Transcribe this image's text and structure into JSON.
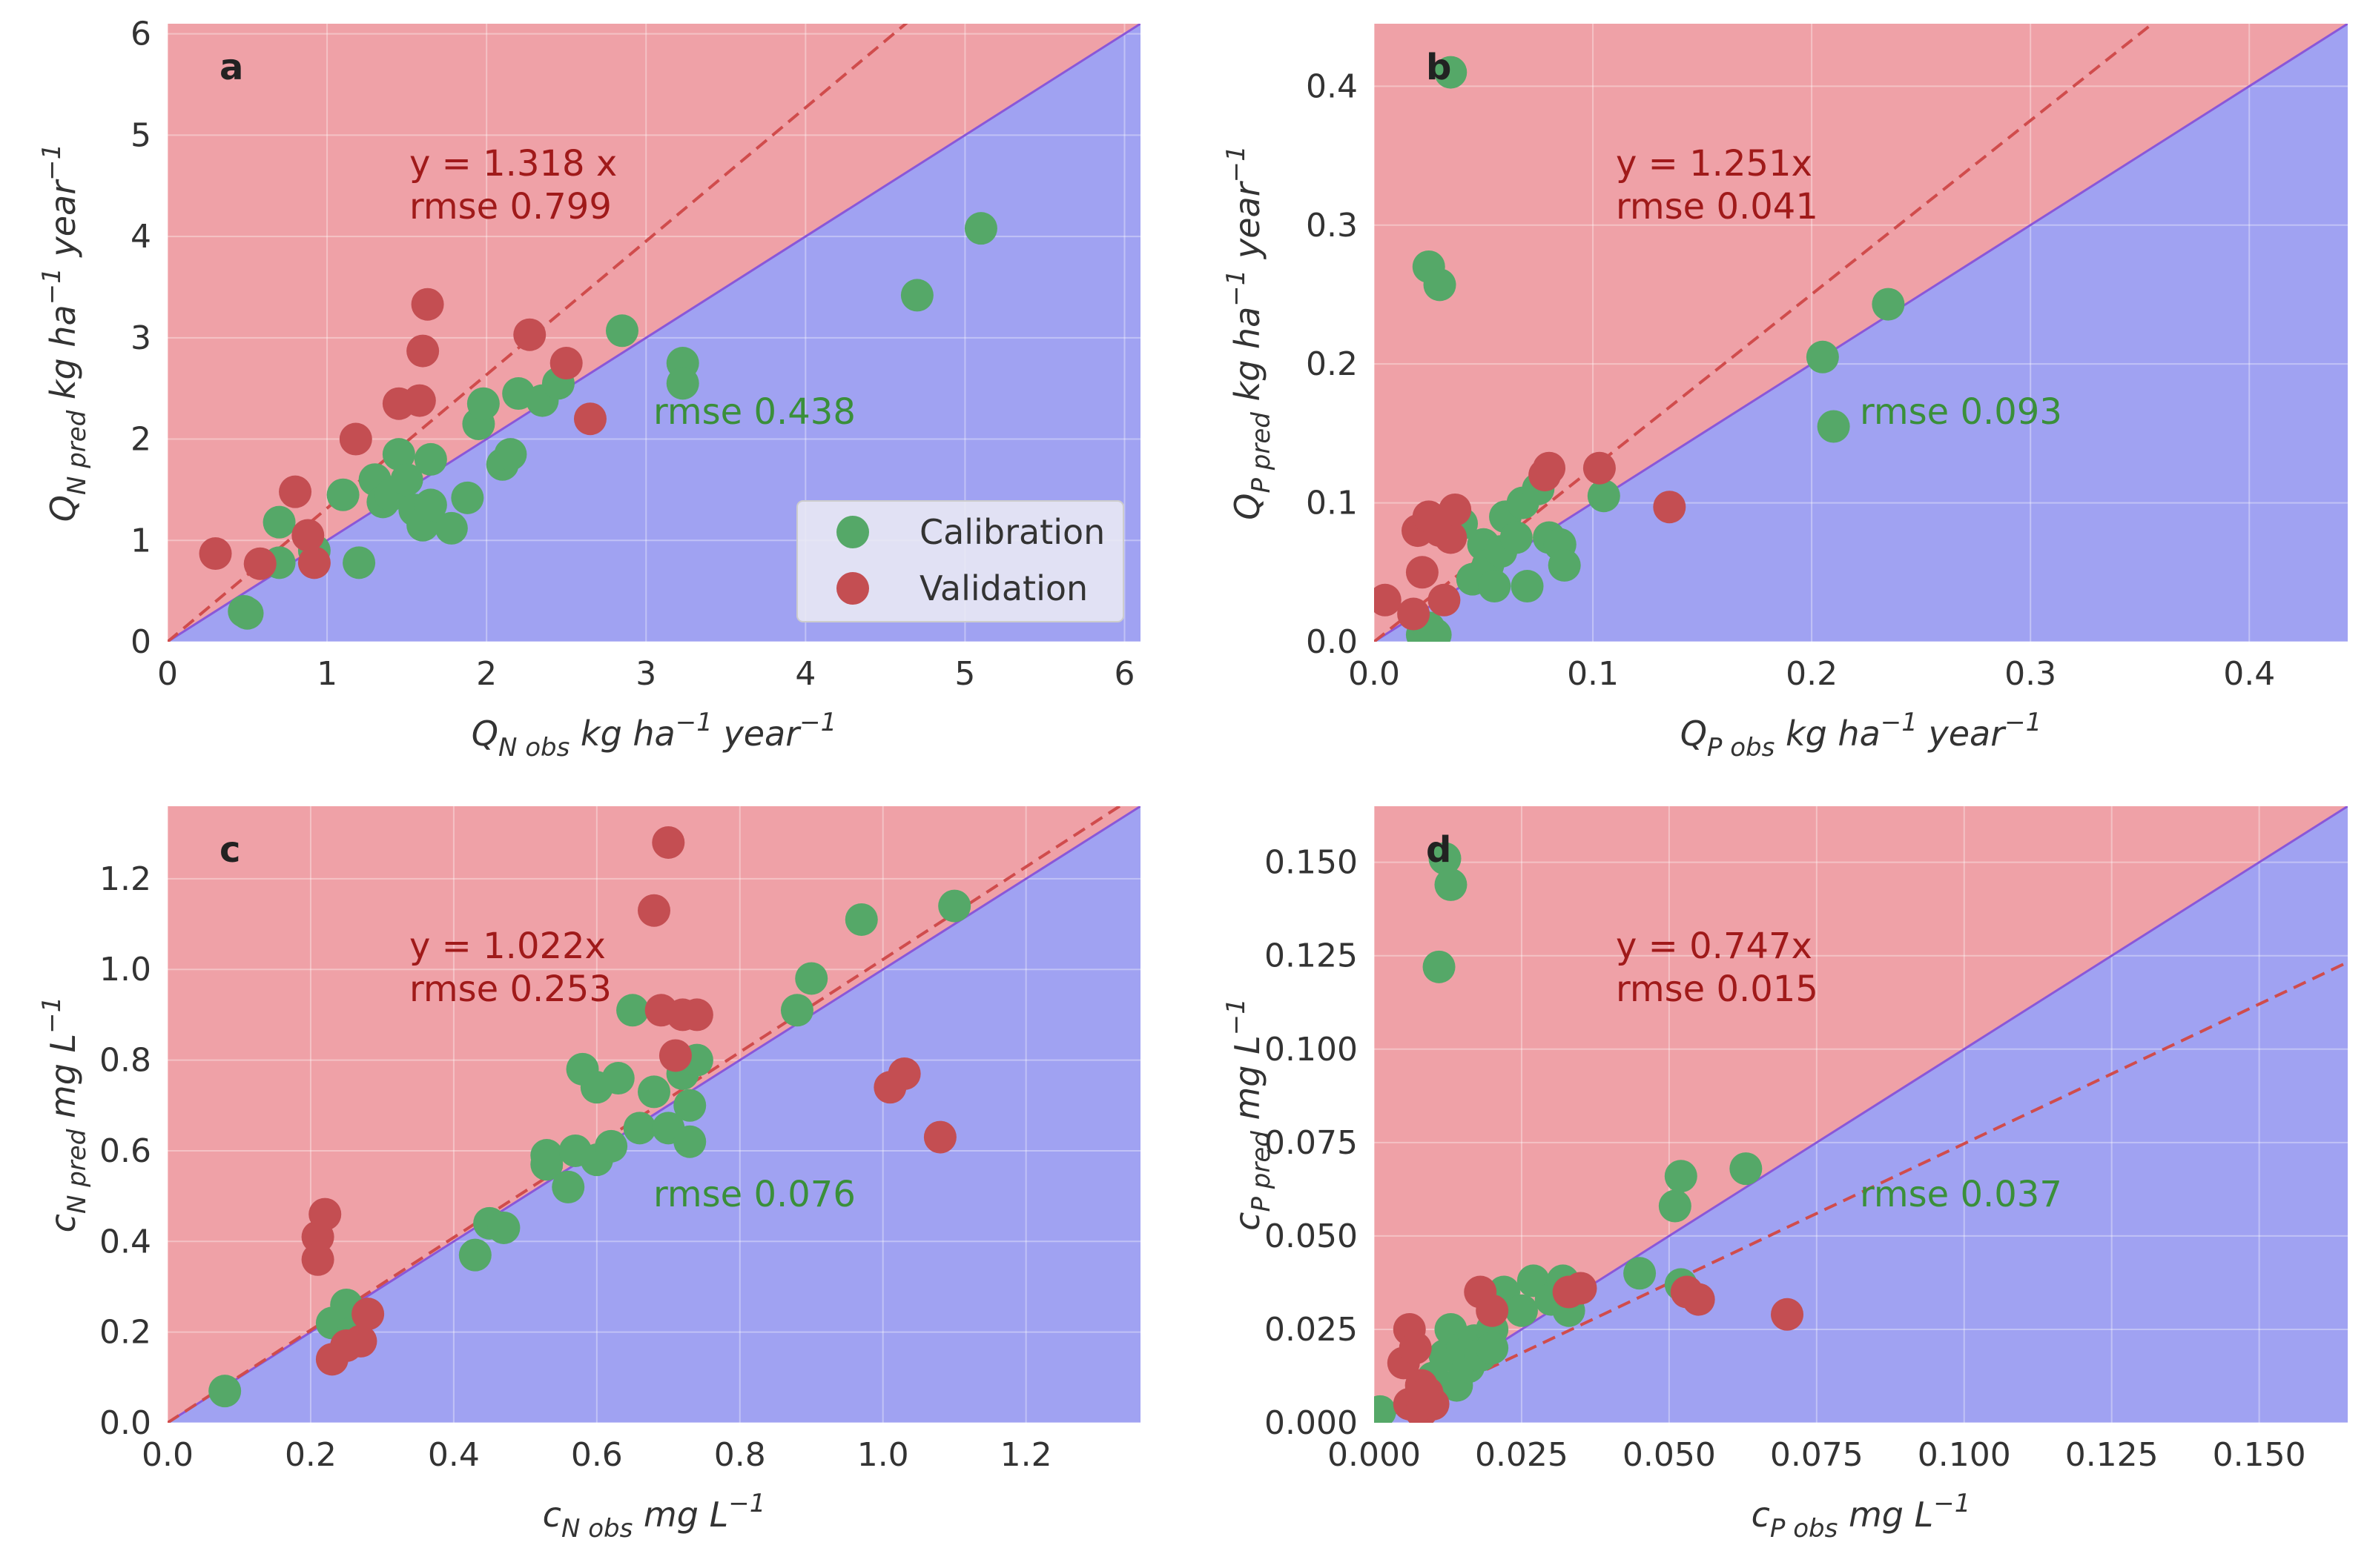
{
  "figure": {
    "colors": {
      "over_region": "#efa1a7",
      "under_region": "#a0a2f2",
      "grid": "#ffffff",
      "one_to_one": "#8a57d8",
      "fit_line": "#d04c4c",
      "calibration": "#55a868",
      "validation": "#c44e52",
      "annot_red": "#a01a1a",
      "annot_green": "#3a8f3a"
    },
    "legend": {
      "calibration_label": "Calibration",
      "validation_label": "Validation"
    }
  },
  "chart_data": [
    {
      "type": "scatter",
      "panel": "a",
      "xlabel": {
        "base": "Q",
        "sub": "N obs",
        "units": " kg ha",
        "sup": "−1",
        "units2": " year",
        "sup2": "−1"
      },
      "ylabel": {
        "base": "Q",
        "sub": "N pred",
        "units": " kg ha",
        "sup": "−1",
        "units2": " year",
        "sup2": "−1"
      },
      "xlim": [
        0,
        6.1
      ],
      "ylim": [
        0,
        6.1
      ],
      "xticks": [
        0,
        1,
        2,
        3,
        4,
        5,
        6
      ],
      "xtick_labels": [
        "0",
        "1",
        "2",
        "3",
        "4",
        "5",
        "6"
      ],
      "yticks": [
        0,
        1,
        2,
        3,
        4,
        5,
        6
      ],
      "ytick_labels": [
        "0",
        "1",
        "2",
        "3",
        "4",
        "5",
        "6"
      ],
      "fit_slope": 1.318,
      "fit_text": "y = 1.318 x",
      "rmse_validation_text": "rmse 0.799",
      "rmse_calibration_text": "rmse 0.438",
      "has_legend": true,
      "series": [
        {
          "name": "Calibration",
          "points": [
            [
              0.5,
              0.28
            ],
            [
              0.48,
              0.3
            ],
            [
              0.7,
              1.18
            ],
            [
              0.7,
              0.78
            ],
            [
              0.92,
              0.9
            ],
            [
              1.1,
              1.45
            ],
            [
              1.2,
              0.78
            ],
            [
              1.3,
              1.6
            ],
            [
              1.35,
              1.38
            ],
            [
              1.4,
              1.45
            ],
            [
              1.45,
              1.85
            ],
            [
              1.5,
              1.6
            ],
            [
              1.55,
              1.3
            ],
            [
              1.6,
              1.15
            ],
            [
              1.65,
              1.35
            ],
            [
              1.65,
              1.8
            ],
            [
              1.78,
              1.12
            ],
            [
              1.88,
              1.42
            ],
            [
              1.95,
              2.15
            ],
            [
              1.98,
              2.35
            ],
            [
              2.1,
              1.75
            ],
            [
              2.15,
              1.85
            ],
            [
              2.2,
              2.45
            ],
            [
              2.35,
              2.38
            ],
            [
              2.45,
              2.55
            ],
            [
              2.85,
              3.07
            ],
            [
              3.23,
              2.75
            ],
            [
              3.23,
              2.55
            ],
            [
              4.7,
              3.42
            ],
            [
              5.1,
              4.08
            ]
          ]
        },
        {
          "name": "Validation",
          "points": [
            [
              0.3,
              0.87
            ],
            [
              0.58,
              0.77
            ],
            [
              0.8,
              1.48
            ],
            [
              0.88,
              1.05
            ],
            [
              0.92,
              0.78
            ],
            [
              1.18,
              2.0
            ],
            [
              1.45,
              2.35
            ],
            [
              1.58,
              2.38
            ],
            [
              1.6,
              2.87
            ],
            [
              1.63,
              3.33
            ],
            [
              2.27,
              3.03
            ],
            [
              2.5,
              2.75
            ],
            [
              2.65,
              2.2
            ]
          ]
        }
      ]
    },
    {
      "type": "scatter",
      "panel": "b",
      "xlabel": {
        "base": "Q",
        "sub": "P obs",
        "units": " kg ha",
        "sup": "−1",
        "units2": " year",
        "sup2": "−1"
      },
      "ylabel": {
        "base": "Q",
        "sub": "P pred",
        "units": " kg ha",
        "sup": "−1",
        "units2": " year",
        "sup2": "−1"
      },
      "xlim": [
        0,
        0.445
      ],
      "ylim": [
        0,
        0.445
      ],
      "xticks": [
        0,
        0.1,
        0.2,
        0.3,
        0.4
      ],
      "xtick_labels": [
        "0.0",
        "0.1",
        "0.2",
        "0.3",
        "0.4"
      ],
      "yticks": [
        0,
        0.1,
        0.2,
        0.3,
        0.4
      ],
      "ytick_labels": [
        "0.0",
        "0.1",
        "0.2",
        "0.3",
        "0.4"
      ],
      "fit_slope": 1.251,
      "fit_text": "y = 1.251x",
      "rmse_validation_text": "rmse 0.041",
      "rmse_calibration_text": "rmse 0.093",
      "has_legend": false,
      "series": [
        {
          "name": "Calibration",
          "points": [
            [
              0.035,
              0.41
            ],
            [
              0.025,
              0.27
            ],
            [
              0.03,
              0.257
            ],
            [
              0.022,
              0.005
            ],
            [
              0.025,
              0.01
            ],
            [
              0.028,
              0.005
            ],
            [
              0.04,
              0.085
            ],
            [
              0.045,
              0.045
            ],
            [
              0.05,
              0.07
            ],
            [
              0.052,
              0.055
            ],
            [
              0.055,
              0.04
            ],
            [
              0.058,
              0.065
            ],
            [
              0.06,
              0.09
            ],
            [
              0.065,
              0.075
            ],
            [
              0.068,
              0.1
            ],
            [
              0.07,
              0.04
            ],
            [
              0.075,
              0.11
            ],
            [
              0.08,
              0.075
            ],
            [
              0.085,
              0.07
            ],
            [
              0.087,
              0.055
            ],
            [
              0.105,
              0.105
            ],
            [
              0.205,
              0.205
            ],
            [
              0.21,
              0.155
            ],
            [
              0.235,
              0.243
            ]
          ]
        },
        {
          "name": "Validation",
          "points": [
            [
              0.005,
              0.03
            ],
            [
              0.018,
              0.02
            ],
            [
              0.02,
              0.08
            ],
            [
              0.022,
              0.05
            ],
            [
              0.025,
              0.09
            ],
            [
              0.03,
              0.08
            ],
            [
              0.032,
              0.03
            ],
            [
              0.035,
              0.075
            ],
            [
              0.037,
              0.095
            ],
            [
              0.078,
              0.12
            ],
            [
              0.08,
              0.125
            ],
            [
              0.103,
              0.125
            ],
            [
              0.135,
              0.097
            ]
          ]
        }
      ]
    },
    {
      "type": "scatter",
      "panel": "c",
      "xlabel": {
        "base": "c",
        "sub": "N obs",
        "units": " mg L",
        "sup": "−1",
        "units2": "",
        "sup2": ""
      },
      "ylabel": {
        "base": "c",
        "sub": "N pred",
        "units": " mg L",
        "sup": "−1",
        "units2": "",
        "sup2": ""
      },
      "xlim": [
        0,
        1.36
      ],
      "ylim": [
        0,
        1.36
      ],
      "xticks": [
        0,
        0.2,
        0.4,
        0.6,
        0.8,
        1.0,
        1.2
      ],
      "xtick_labels": [
        "0.0",
        "0.2",
        "0.4",
        "0.6",
        "0.8",
        "1.0",
        "1.2"
      ],
      "yticks": [
        0,
        0.2,
        0.4,
        0.6,
        0.8,
        1.0,
        1.2
      ],
      "ytick_labels": [
        "0.0",
        "0.2",
        "0.4",
        "0.6",
        "0.8",
        "1.0",
        "1.2"
      ],
      "fit_slope": 1.022,
      "fit_text": "y = 1.022x",
      "rmse_validation_text": "rmse 0.253",
      "rmse_calibration_text": "rmse 0.076",
      "has_legend": false,
      "series": [
        {
          "name": "Calibration",
          "points": [
            [
              0.08,
              0.07
            ],
            [
              0.23,
              0.22
            ],
            [
              0.25,
              0.26
            ],
            [
              0.26,
              0.2
            ],
            [
              0.43,
              0.37
            ],
            [
              0.45,
              0.44
            ],
            [
              0.47,
              0.43
            ],
            [
              0.53,
              0.59
            ],
            [
              0.53,
              0.57
            ],
            [
              0.56,
              0.52
            ],
            [
              0.57,
              0.6
            ],
            [
              0.58,
              0.78
            ],
            [
              0.6,
              0.58
            ],
            [
              0.6,
              0.74
            ],
            [
              0.62,
              0.61
            ],
            [
              0.63,
              0.76
            ],
            [
              0.65,
              0.91
            ],
            [
              0.66,
              0.65
            ],
            [
              0.68,
              0.73
            ],
            [
              0.7,
              0.65
            ],
            [
              0.72,
              0.77
            ],
            [
              0.73,
              0.7
            ],
            [
              0.73,
              0.62
            ],
            [
              0.74,
              0.8
            ],
            [
              0.88,
              0.91
            ],
            [
              0.9,
              0.98
            ],
            [
              0.97,
              1.11
            ],
            [
              1.1,
              1.14
            ]
          ]
        },
        {
          "name": "Validation",
          "points": [
            [
              0.21,
              0.41
            ],
            [
              0.21,
              0.36
            ],
            [
              0.22,
              0.46
            ],
            [
              0.23,
              0.14
            ],
            [
              0.25,
              0.17
            ],
            [
              0.27,
              0.18
            ],
            [
              0.28,
              0.24
            ],
            [
              0.68,
              1.13
            ],
            [
              0.69,
              0.91
            ],
            [
              0.7,
              1.28
            ],
            [
              0.71,
              0.81
            ],
            [
              0.72,
              0.9
            ],
            [
              0.74,
              0.9
            ],
            [
              1.01,
              0.74
            ],
            [
              1.03,
              0.77
            ],
            [
              1.08,
              0.63
            ]
          ]
        }
      ]
    },
    {
      "type": "scatter",
      "panel": "d",
      "xlabel": {
        "base": "c",
        "sub": "P obs",
        "units": " mg L",
        "sup": "−1",
        "units2": "",
        "sup2": ""
      },
      "ylabel": {
        "base": "c",
        "sub": "P pred",
        "units": " mg L",
        "sup": "−1",
        "units2": "",
        "sup2": ""
      },
      "xlim": [
        0,
        0.165
      ],
      "ylim": [
        0,
        0.165
      ],
      "xticks": [
        0,
        0.025,
        0.05,
        0.075,
        0.1,
        0.125,
        0.15
      ],
      "xtick_labels": [
        "0.000",
        "0.025",
        "0.050",
        "0.075",
        "0.100",
        "0.125",
        "0.150"
      ],
      "yticks": [
        0,
        0.025,
        0.05,
        0.075,
        0.1,
        0.125,
        0.15
      ],
      "ytick_labels": [
        "0.000",
        "0.025",
        "0.050",
        "0.075",
        "0.100",
        "0.125",
        "0.150"
      ],
      "fit_slope": 0.747,
      "fit_text": "y = 0.747x",
      "rmse_validation_text": "rmse 0.015",
      "rmse_calibration_text": "rmse 0.037",
      "has_legend": false,
      "series": [
        {
          "name": "Calibration",
          "points": [
            [
              0.001,
              0.003
            ],
            [
              0.011,
              0.122
            ],
            [
              0.012,
              0.151
            ],
            [
              0.013,
              0.144
            ],
            [
              0.01,
              0.012
            ],
            [
              0.012,
              0.018
            ],
            [
              0.013,
              0.025
            ],
            [
              0.014,
              0.01
            ],
            [
              0.015,
              0.02
            ],
            [
              0.016,
              0.015
            ],
            [
              0.017,
              0.022
            ],
            [
              0.018,
              0.018
            ],
            [
              0.02,
              0.025
            ],
            [
              0.02,
              0.02
            ],
            [
              0.022,
              0.035
            ],
            [
              0.025,
              0.03
            ],
            [
              0.027,
              0.038
            ],
            [
              0.03,
              0.033
            ],
            [
              0.032,
              0.038
            ],
            [
              0.033,
              0.03
            ],
            [
              0.045,
              0.04
            ],
            [
              0.051,
              0.058
            ],
            [
              0.052,
              0.066
            ],
            [
              0.052,
              0.037
            ],
            [
              0.063,
              0.068
            ]
          ]
        },
        {
          "name": "Validation",
          "points": [
            [
              0.005,
              0.016
            ],
            [
              0.006,
              0.025
            ],
            [
              0.006,
              0.005
            ],
            [
              0.007,
              0.02
            ],
            [
              0.008,
              0.01
            ],
            [
              0.008,
              0.003
            ],
            [
              0.009,
              0.008
            ],
            [
              0.01,
              0.005
            ],
            [
              0.018,
              0.035
            ],
            [
              0.02,
              0.03
            ],
            [
              0.033,
              0.035
            ],
            [
              0.035,
              0.036
            ],
            [
              0.053,
              0.035
            ],
            [
              0.055,
              0.033
            ],
            [
              0.07,
              0.029
            ]
          ]
        }
      ]
    }
  ]
}
